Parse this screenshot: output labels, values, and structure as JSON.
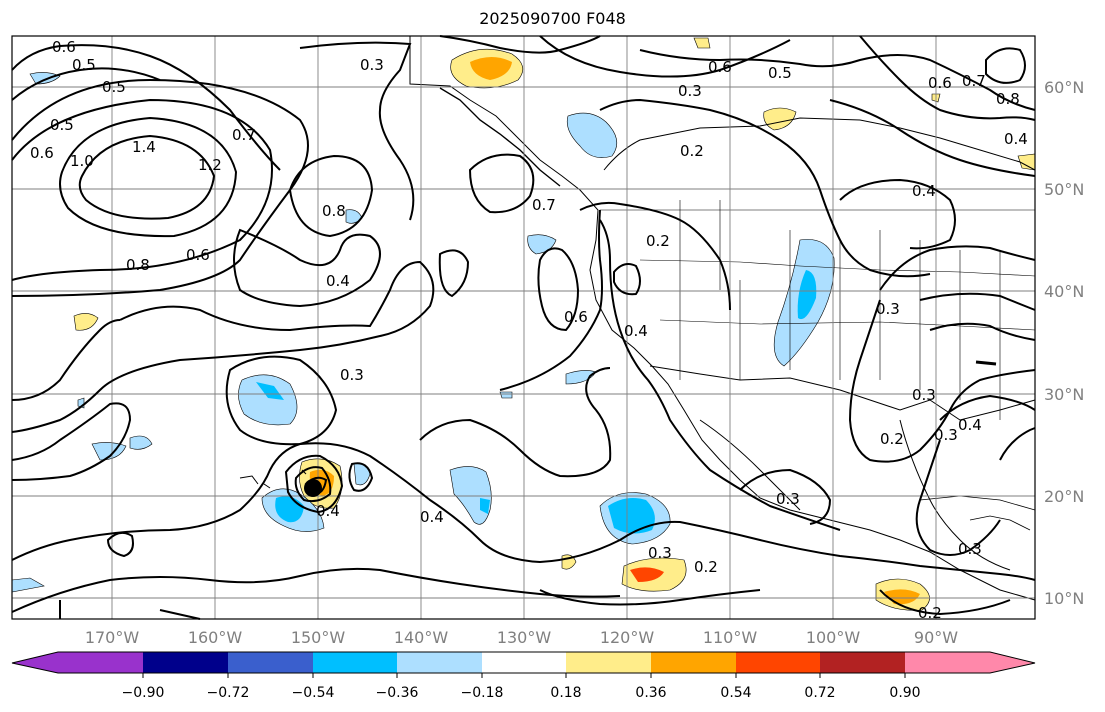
{
  "title": "2025090700 F048",
  "map": {
    "lon_labels": [
      "170°W",
      "160°W",
      "150°W",
      "140°W",
      "130°W",
      "120°W",
      "110°W",
      "100°W",
      "90°W"
    ],
    "lat_labels": [
      "60°N",
      "50°N",
      "40°N",
      "30°N",
      "20°N",
      "10°N"
    ],
    "gridline_color": "#7f7f7f",
    "tick_label_color": "#808080",
    "contour_color": "#000000",
    "contour_labels": [
      "0.6",
      "0.5",
      "0.5",
      "0.5",
      "0.6",
      "1.0",
      "1.4",
      "1.2",
      "0.7",
      "0.8",
      "0.8",
      "0.6",
      "0.3",
      "0.6",
      "0.5",
      "0.3",
      "0.2",
      "0.7",
      "0.4",
      "0.2",
      "0.4",
      "0.6",
      "0.4",
      "0.3",
      "0.4",
      "0.4",
      "0.6",
      "0.7",
      "0.8",
      "0.4",
      "0.3",
      "0.3",
      "0.3",
      "0.4",
      "0.3",
      "0.3",
      "0.2",
      "0.2",
      "0.3",
      "0.2"
    ],
    "storm_marker": "tropical-cyclone-center"
  },
  "colorbar": {
    "ticks": [
      "−0.90",
      "−0.72",
      "−0.54",
      "−0.36",
      "−0.18",
      "0.18",
      "0.36",
      "0.54",
      "0.72",
      "0.90"
    ],
    "colors": [
      "#9932CC",
      "#00008B",
      "#3A5FCD",
      "#00BFFF",
      "#ADDFFF",
      "#FFFFFF",
      "#FFED8A",
      "#FFA500",
      "#FF4500",
      "#B22222",
      "#FF88AA"
    ]
  }
}
